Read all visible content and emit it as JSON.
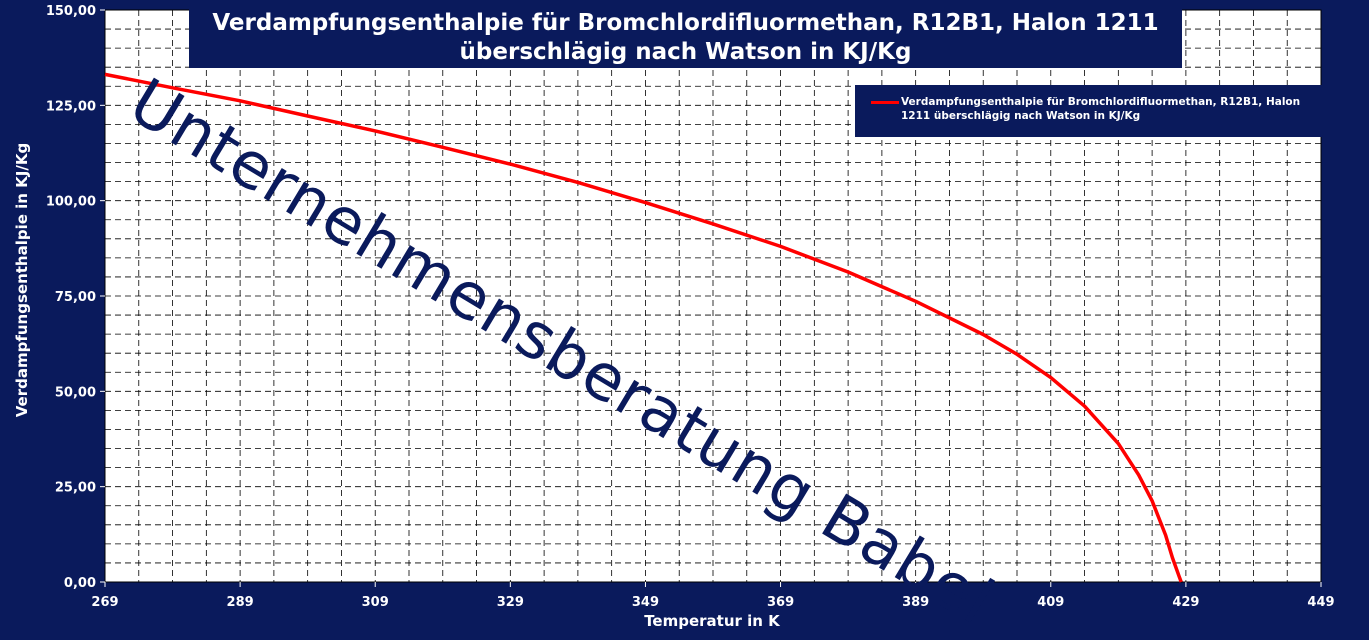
{
  "chart_data": {
    "type": "line",
    "title": "Verdampfungsenthalpie für Bromchlordifluormethan, R12B1, Halon 1211 überschläg nach Watson in KJ/Kg",
    "title_lines": [
      "Verdampfungsenthalpie für Bromchlordifluormethan, R12B1, Halon 1211",
      "überschlägig nach Watson in KJ/Kg"
    ],
    "xlabel": "Temperatur in K",
    "ylabel": "Verdampfungsenthalpie in KJ/Kg",
    "xlim": [
      269,
      449
    ],
    "ylim": [
      0,
      150
    ],
    "x_ticks": [
      "269",
      "289",
      "309",
      "329",
      "349",
      "369",
      "389",
      "409",
      "429",
      "449"
    ],
    "y_ticks": [
      "0,00",
      "25,00",
      "50,00",
      "75,00",
      "100,00",
      "125,00",
      "150,00"
    ],
    "grid": true,
    "legend_position": "top-right",
    "series": [
      {
        "name": "Verdampfungsenthalpie für Bromchlordifluormethan, R12B1, Halon 1211 überschlägig nach Watson in KJ/Kg",
        "color": "#ff0000",
        "x": [
          269,
          279,
          289,
          299,
          309,
          319,
          329,
          339,
          349,
          359,
          369,
          379,
          389,
          399,
          404,
          409,
          414,
          419,
          422,
          424,
          426,
          427,
          428,
          428.3
        ],
        "y": [
          133.1,
          129.6,
          126.2,
          122.2,
          118.3,
          114.0,
          109.6,
          104.8,
          99.5,
          93.9,
          88.0,
          81.3,
          73.6,
          64.9,
          59.7,
          53.6,
          46.1,
          36.3,
          28.1,
          21.3,
          12.3,
          6.4,
          1.5,
          0
        ]
      }
    ]
  },
  "watermark": "Unternehmensberatung Babel",
  "colors": {
    "background": "#0a1a5c",
    "plot": "#ffffff",
    "line": "#ff0000",
    "grid": "#000000"
  }
}
